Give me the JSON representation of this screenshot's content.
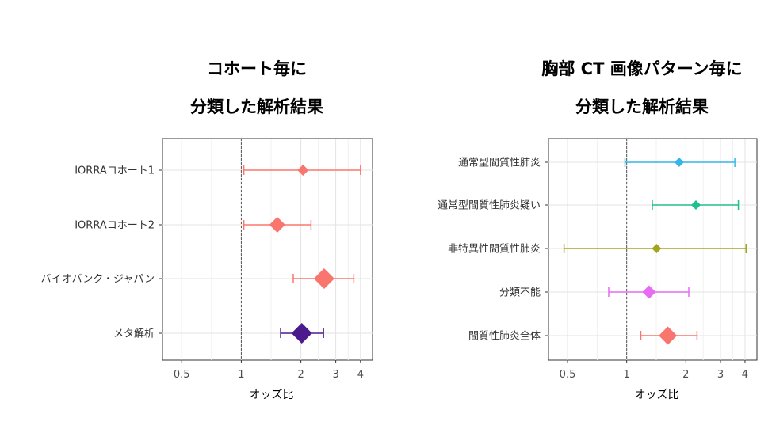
{
  "chart_data": [
    {
      "type": "forest",
      "title_lines": [
        "コホート毎に",
        "分類した解析結果"
      ],
      "xlabel": "オッズ比",
      "xscale": "log",
      "xlim": [
        0.4,
        4.6
      ],
      "xticks": [
        0.5,
        1,
        2,
        3,
        4
      ],
      "xtick_labels": [
        "0.5",
        "1",
        "2",
        "3",
        "4"
      ],
      "reference_line": 1,
      "grid": true,
      "rows": [
        {
          "label": "IORRAコホート1",
          "estimate": 2.05,
          "lower": 1.03,
          "upper": 4.0,
          "color": "#f8766d",
          "size": "small"
        },
        {
          "label": "IORRAコホート2",
          "estimate": 1.52,
          "lower": 1.03,
          "upper": 2.25,
          "color": "#f8766d",
          "size": "medium"
        },
        {
          "label": "バイオバンク・ジャパン",
          "estimate": 2.62,
          "lower": 1.83,
          "upper": 3.7,
          "color": "#f8766d",
          "size": "large"
        },
        {
          "label": "メタ解析",
          "estimate": 2.02,
          "lower": 1.58,
          "upper": 2.6,
          "color": "#4b1a8c",
          "size": "large"
        }
      ]
    },
    {
      "type": "forest",
      "title_lines": [
        "胸部 CT 画像パターン毎に",
        "分類した解析結果"
      ],
      "xlabel": "オッズ比",
      "xscale": "log",
      "xlim": [
        0.4,
        4.6
      ],
      "xticks": [
        0.5,
        1,
        2,
        3,
        4
      ],
      "xtick_labels": [
        "0.5",
        "1",
        "2",
        "3",
        "4"
      ],
      "reference_line": 1,
      "grid": true,
      "rows": [
        {
          "label": "通常型間質性肺炎",
          "estimate": 1.85,
          "lower": 0.98,
          "upper": 3.55,
          "color": "#35b6e8",
          "size": "small"
        },
        {
          "label": "通常型間質性肺炎疑い",
          "estimate": 2.25,
          "lower": 1.35,
          "upper": 3.7,
          "color": "#1fbf8e",
          "size": "small"
        },
        {
          "label": "非特異性間質性肺炎",
          "estimate": 1.42,
          "lower": 0.48,
          "upper": 4.05,
          "color": "#a3a520",
          "size": "small"
        },
        {
          "label": "分類不能",
          "estimate": 1.3,
          "lower": 0.81,
          "upper": 2.07,
          "color": "#e76bf3",
          "size": "medium"
        },
        {
          "label": "間質性肺炎全体",
          "estimate": 1.62,
          "lower": 1.18,
          "upper": 2.28,
          "color": "#f8766d",
          "size": "large"
        }
      ]
    }
  ]
}
